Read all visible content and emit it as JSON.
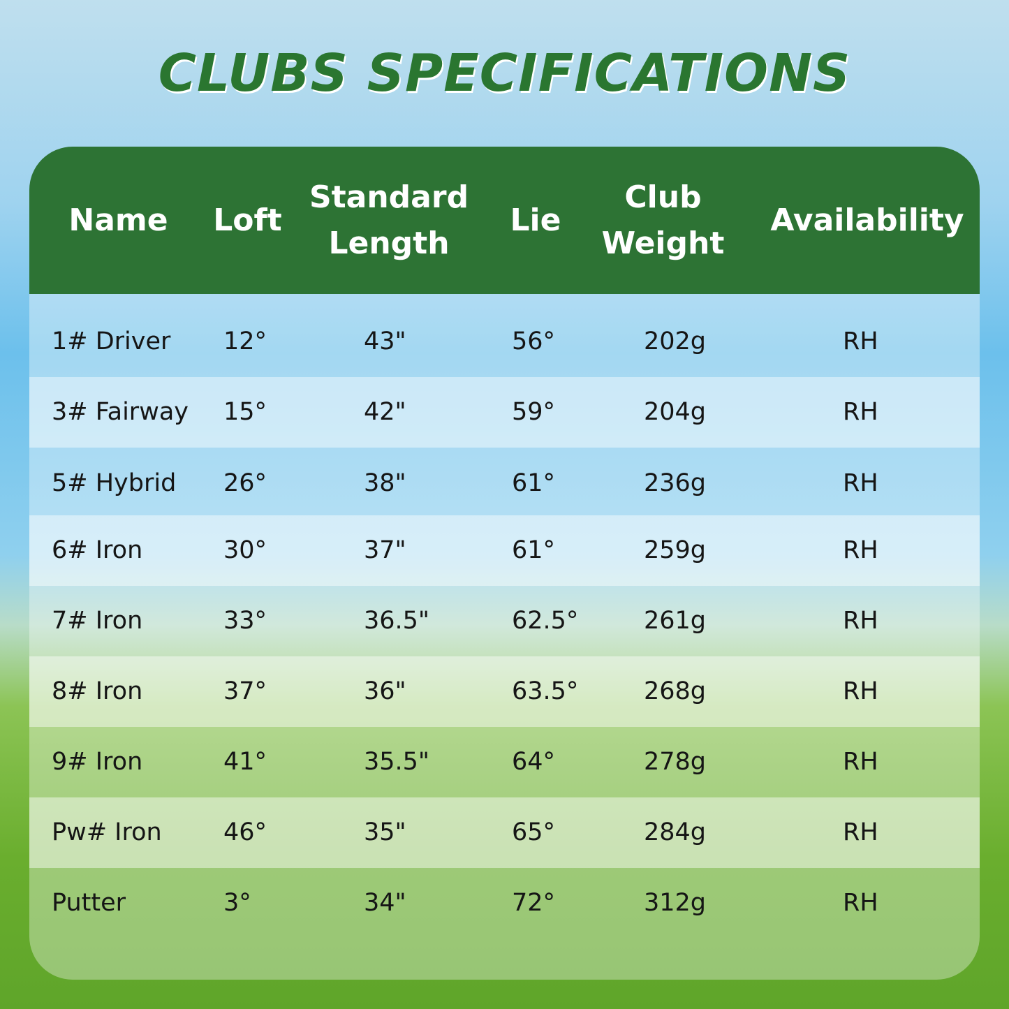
{
  "title": "CLUBS SPECIFICATIONS",
  "colors": {
    "header_green": "#2d7334",
    "title_green": "#2a7630"
  },
  "table": {
    "headers": [
      {
        "line1": "Name",
        "line2": ""
      },
      {
        "line1": "Loft",
        "line2": ""
      },
      {
        "line1": "Standard",
        "line2": "Length"
      },
      {
        "line1": "Lie",
        "line2": ""
      },
      {
        "line1": "Club",
        "line2": "Weight"
      },
      {
        "line1": "Availability",
        "line2": ""
      }
    ],
    "rows": [
      [
        "1# Driver",
        "12°",
        "43\"",
        "56°",
        "202g",
        "RH"
      ],
      [
        "3# Fairway",
        "15°",
        "42\"",
        "59°",
        "204g",
        "RH"
      ],
      [
        "5# Hybrid",
        "26°",
        "38\"",
        "61°",
        "236g",
        "RH"
      ],
      [
        "6# Iron",
        "30°",
        "37\"",
        "61°",
        "259g",
        "RH"
      ],
      [
        "7# Iron",
        "33°",
        "36.5\"",
        "62.5°",
        "261g",
        "RH"
      ],
      [
        "8# Iron",
        "37°",
        "36\"",
        "63.5°",
        "268g",
        "RH"
      ],
      [
        "9# Iron",
        "41°",
        "35.5\"",
        "64°",
        "278g",
        "RH"
      ],
      [
        "Pw# Iron",
        "46°",
        "35\"",
        "65°",
        "284g",
        "RH"
      ],
      [
        "Putter",
        "3°",
        "34\"",
        "72°",
        "312g",
        "RH"
      ]
    ]
  }
}
